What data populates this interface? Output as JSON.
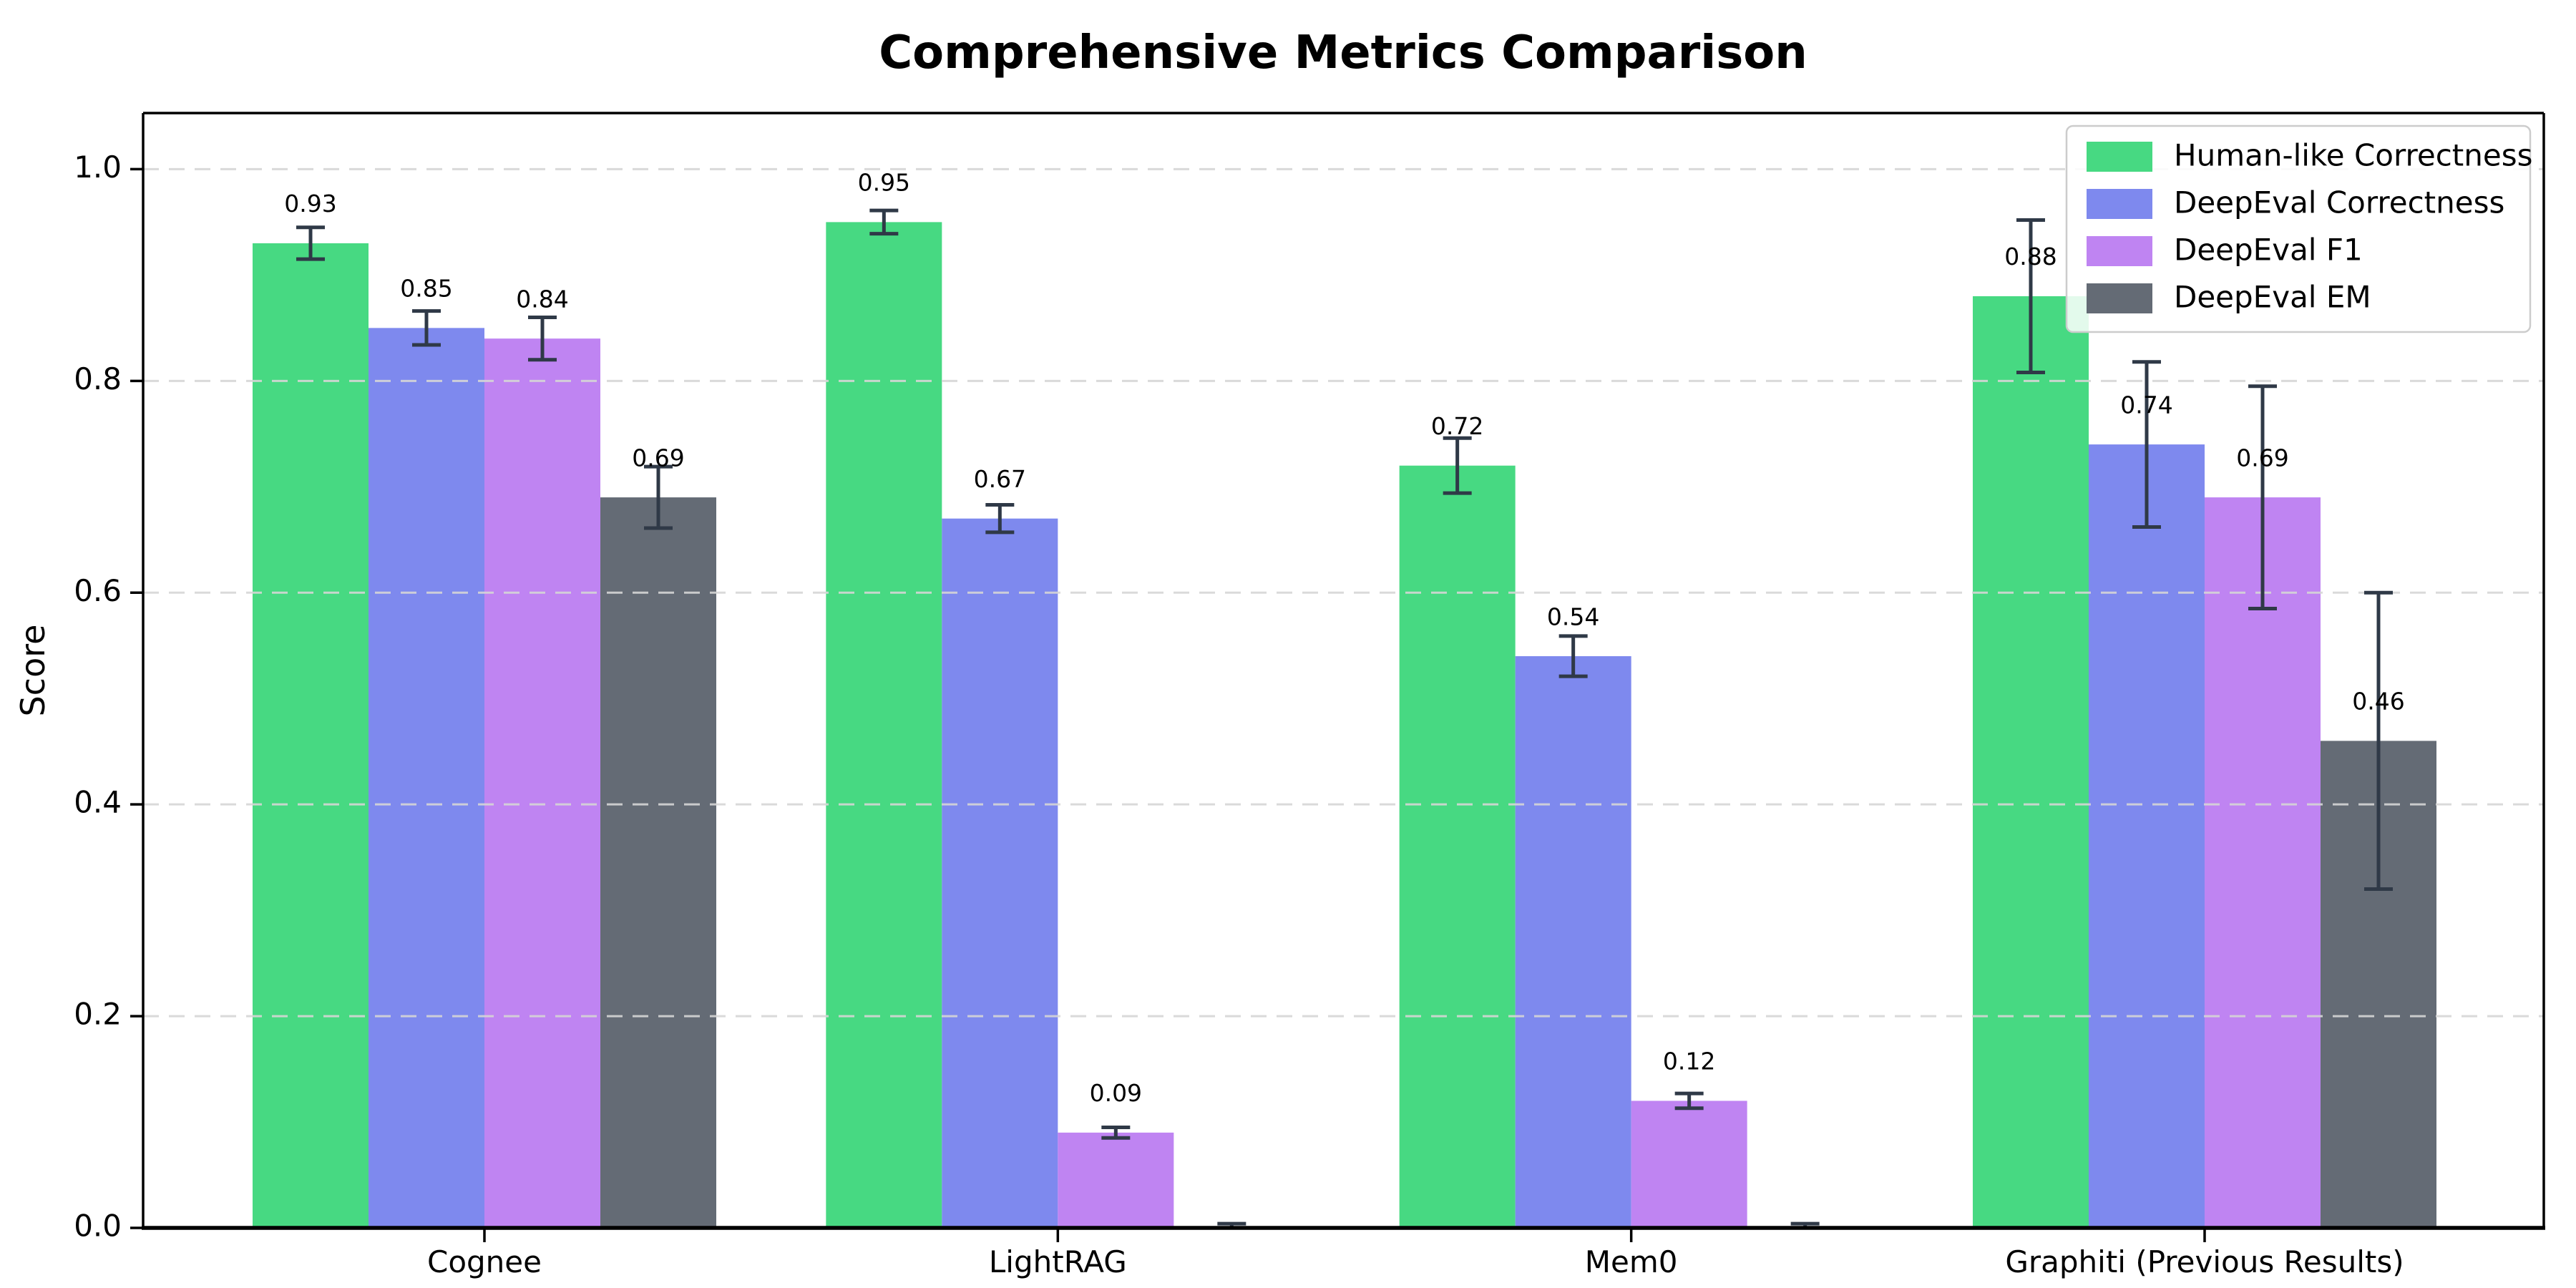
{
  "chart_data": {
    "type": "bar",
    "title": "Comprehensive Metrics Comparison",
    "xlabel": "",
    "ylabel": "Score",
    "categories": [
      "Cognee",
      "LightRAG",
      "Mem0",
      "Graphiti (Previous Results)"
    ],
    "series": [
      {
        "name": "Human-like Correctness",
        "color": "#47d982",
        "values": [
          0.93,
          0.95,
          0.72,
          0.88
        ],
        "errors": [
          0.015,
          0.011,
          0.026,
          0.072
        ]
      },
      {
        "name": "DeepEval Correctness",
        "color": "#7e89ee",
        "values": [
          0.85,
          0.67,
          0.54,
          0.74
        ],
        "errors": [
          0.016,
          0.013,
          0.019,
          0.078
        ]
      },
      {
        "name": "DeepEval F1",
        "color": "#bf84f2",
        "values": [
          0.84,
          0.09,
          0.12,
          0.69
        ],
        "errors": [
          0.02,
          0.005,
          0.007,
          0.105
        ]
      },
      {
        "name": "DeepEval EM",
        "color": "#646b75",
        "values": [
          0.69,
          0.0,
          0.0,
          0.46
        ],
        "errors": [
          0.029,
          0.004,
          0.004,
          0.14
        ]
      }
    ],
    "value_labels": [
      [
        "0.93",
        "0.95",
        "0.72",
        "0.88"
      ],
      [
        "0.85",
        "0.67",
        "0.54",
        "0.74"
      ],
      [
        "0.84",
        "0.09",
        "0.12",
        "0.69"
      ],
      [
        "0.69",
        "",
        "",
        "0.46"
      ]
    ],
    "ylim": [
      0,
      1.053
    ],
    "yticks": [
      "0.0",
      "0.2",
      "0.4",
      "0.6",
      "0.8",
      "1.0"
    ],
    "grid": "horizontal dashed",
    "legend_position": "upper right",
    "colors": {
      "error_bar": "#2f3947",
      "gridline": "#d6d6d6",
      "spine": "#000000",
      "legend_border": "#cccccc",
      "legend_background": "rgba(255,255,255,0.85)"
    }
  }
}
